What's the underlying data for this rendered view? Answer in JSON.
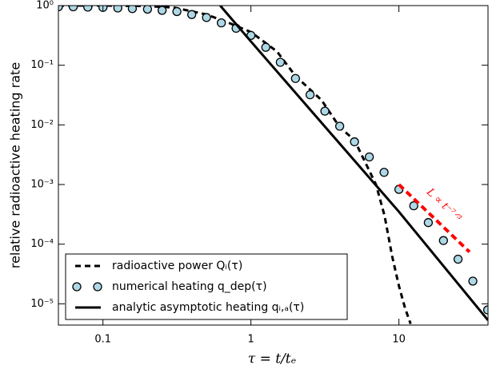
{
  "chart_data": {
    "type": "line",
    "xlabel": "τ = t/tₑ",
    "ylabel": "relative radioactive heating rate",
    "xscale": "log",
    "yscale": "log",
    "xlim": [
      0.05,
      40
    ],
    "ylim": [
      4.4e-06,
      1
    ],
    "xticks": [
      0.1,
      1,
      10
    ],
    "yticks": [
      {
        "value": 1,
        "label": "10⁰"
      },
      {
        "value": 0.1,
        "label": "10⁻¹"
      },
      {
        "value": 0.01,
        "label": "10⁻²"
      },
      {
        "value": 0.001,
        "label": "10⁻³"
      },
      {
        "value": 0.0001,
        "label": "10⁻⁴"
      },
      {
        "value": 1e-05,
        "label": "10⁻⁵"
      }
    ],
    "legend": "lower left",
    "series": [
      {
        "name": "radioactive power Qᵢ(τ)",
        "color": "#000000",
        "linestyle": "dashed",
        "marker": "none",
        "x": [
          0.05,
          0.1,
          0.2,
          0.3,
          0.5,
          0.7,
          1,
          1.5,
          2,
          3,
          4,
          5,
          6,
          7,
          8,
          9,
          10,
          11,
          12
        ],
        "values": [
          1,
          1,
          0.98,
          0.93,
          0.71,
          0.52,
          0.36,
          0.17,
          0.066,
          0.026,
          0.009,
          0.0056,
          0.0022,
          0.001,
          0.0003,
          6.3e-05,
          2e-05,
          8.5e-06,
          4.6e-06
        ]
      },
      {
        "name": "numerical heating q_dep(τ)",
        "color": "#add8e6",
        "linestyle": "none",
        "marker": "circle",
        "x": [
          0.05,
          0.063,
          0.079,
          0.1,
          0.126,
          0.158,
          0.2,
          0.251,
          0.316,
          0.398,
          0.501,
          0.631,
          0.794,
          1,
          1.26,
          1.58,
          2,
          2.51,
          3.16,
          3.98,
          5.01,
          6.31,
          7.94,
          10,
          12.6,
          15.8,
          20,
          25.1,
          31.6,
          39.8
        ],
        "values": [
          0.955,
          0.955,
          0.944,
          0.933,
          0.912,
          0.891,
          0.871,
          0.832,
          0.794,
          0.708,
          0.631,
          0.513,
          0.417,
          0.316,
          0.2,
          0.112,
          0.06,
          0.032,
          0.017,
          0.0095,
          0.0052,
          0.0029,
          0.0016,
          0.00083,
          0.00044,
          0.00023,
          0.000115,
          5.6e-05,
          2.4e-05,
          7.9e-06
        ]
      },
      {
        "name": "analytic asymptotic heating qᵢ,ₐ(τ)",
        "color": "#000000",
        "linestyle": "solid",
        "marker": "none",
        "x": [
          0.62,
          1,
          10,
          40
        ],
        "values": [
          1,
          0.25,
          0.00035,
          5.3e-06
        ]
      }
    ],
    "reference_line": {
      "text": "L ∝ t⁻⁷ᐟ³",
      "color": "#ff0000",
      "x": [
        10,
        30
      ],
      "values": [
        0.001,
        7.4e-05
      ]
    }
  }
}
